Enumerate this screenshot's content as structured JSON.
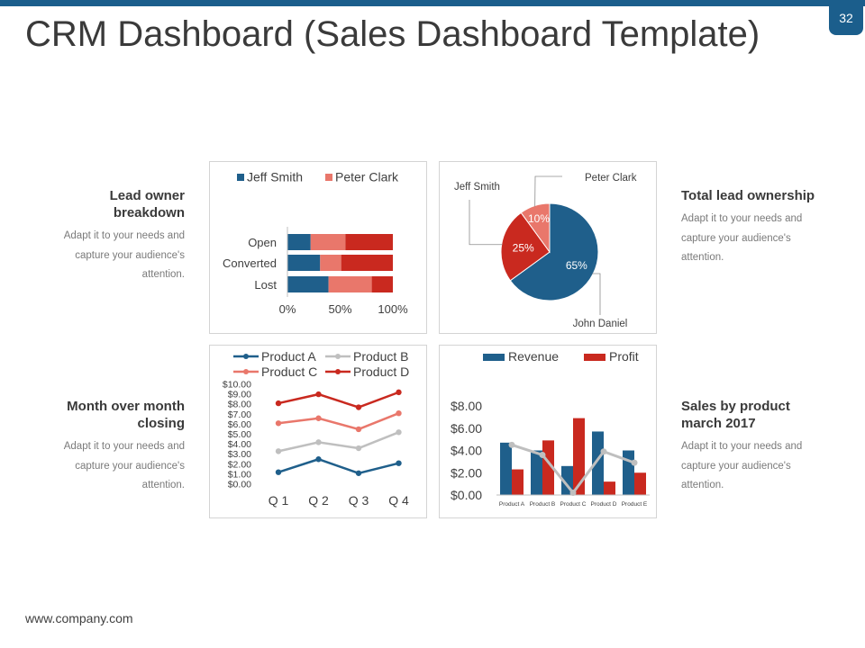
{
  "slide": {
    "title": "CRM Dashboard (Sales Dashboard Template)",
    "page_number": "32",
    "footer": "www.company.com",
    "colors": {
      "accent": "#1b5e8c",
      "blue": "#1f5f8b",
      "red": "#c9291f",
      "salmon": "#e9776b",
      "gray": "#bfbfbf"
    }
  },
  "descriptions": {
    "lead_owner": {
      "title": "Lead owner breakdown",
      "text": "Adapt it to your needs and capture your audience's attention."
    },
    "total_lead": {
      "title": "Total lead ownership",
      "text": "Adapt it to your needs and capture your audience's attention."
    },
    "month_over": {
      "title": "Month over month closing",
      "text": "Adapt it to your needs and capture your audience's attention."
    },
    "sales_by_product": {
      "title": "Sales by product march 2017",
      "text": "Adapt it to your needs and capture your audience's attention."
    }
  },
  "chart_data": [
    {
      "type": "bar",
      "orientation": "horizontal",
      "stacked": "100%",
      "categories": [
        "Open",
        "Converted",
        "Lost"
      ],
      "series": [
        {
          "name": "Jeff Smith",
          "color": "#1f5f8b",
          "values": [
            22,
            31,
            39
          ]
        },
        {
          "name": "Peter Clark",
          "color": "#e9776b",
          "values": [
            33,
            20,
            41
          ]
        },
        {
          "name": "",
          "color": "#c9291f",
          "values": [
            45,
            49,
            20
          ]
        }
      ],
      "xticks": [
        "0%",
        "50%",
        "100%"
      ],
      "legend": "top"
    },
    {
      "type": "pie",
      "slices": [
        {
          "label": "John Daniel",
          "value": 65,
          "display": "65%",
          "color": "#1f5f8b"
        },
        {
          "label": "Jeff Smith",
          "value": 25,
          "display": "25%",
          "color": "#c9291f"
        },
        {
          "label": "Peter Clark",
          "value": 10,
          "display": "10%",
          "color": "#e9776b"
        }
      ]
    },
    {
      "type": "line",
      "categories": [
        "Q 1",
        "Q 2",
        "Q 3",
        "Q 4"
      ],
      "series": [
        {
          "name": "Product A",
          "color": "#1f5f8b",
          "values": [
            1.2,
            2.5,
            1.1,
            2.1
          ]
        },
        {
          "name": "Product B",
          "color": "#bfbfbf",
          "values": [
            3.3,
            4.2,
            3.6,
            5.2
          ]
        },
        {
          "name": "Product C",
          "color": "#e9776b",
          "values": [
            6.1,
            6.6,
            5.5,
            7.1
          ]
        },
        {
          "name": "Product D",
          "color": "#c9291f",
          "values": [
            8.1,
            9.0,
            7.7,
            9.2
          ]
        }
      ],
      "yticks": [
        "$0.00",
        "$1.00",
        "$2.00",
        "$3.00",
        "$4.00",
        "$5.00",
        "$6.00",
        "$7.00",
        "$8.00",
        "$9.00",
        "$10.00"
      ],
      "ylim": [
        0,
        10
      ],
      "legend": "top"
    },
    {
      "type": "bar",
      "orientation": "vertical",
      "categories": [
        "Product A",
        "Product B",
        "Product C",
        "Product D",
        "Product E"
      ],
      "series": [
        {
          "name": "Revenue",
          "color": "#1f5f8b",
          "kind": "bar",
          "values": [
            4.7,
            4.0,
            2.6,
            5.7,
            4.0
          ]
        },
        {
          "name": "Profit",
          "color": "#c9291f",
          "kind": "bar",
          "values": [
            2.3,
            4.9,
            6.9,
            1.2,
            2.0
          ]
        },
        {
          "name": "",
          "color": "#bfbfbf",
          "kind": "line",
          "values": [
            4.5,
            3.6,
            0.2,
            3.9,
            2.9
          ]
        }
      ],
      "yticks": [
        "$0.00",
        "$2.00",
        "$4.00",
        "$6.00",
        "$8.00"
      ],
      "ylim": [
        0,
        8
      ],
      "legend": "top"
    }
  ]
}
